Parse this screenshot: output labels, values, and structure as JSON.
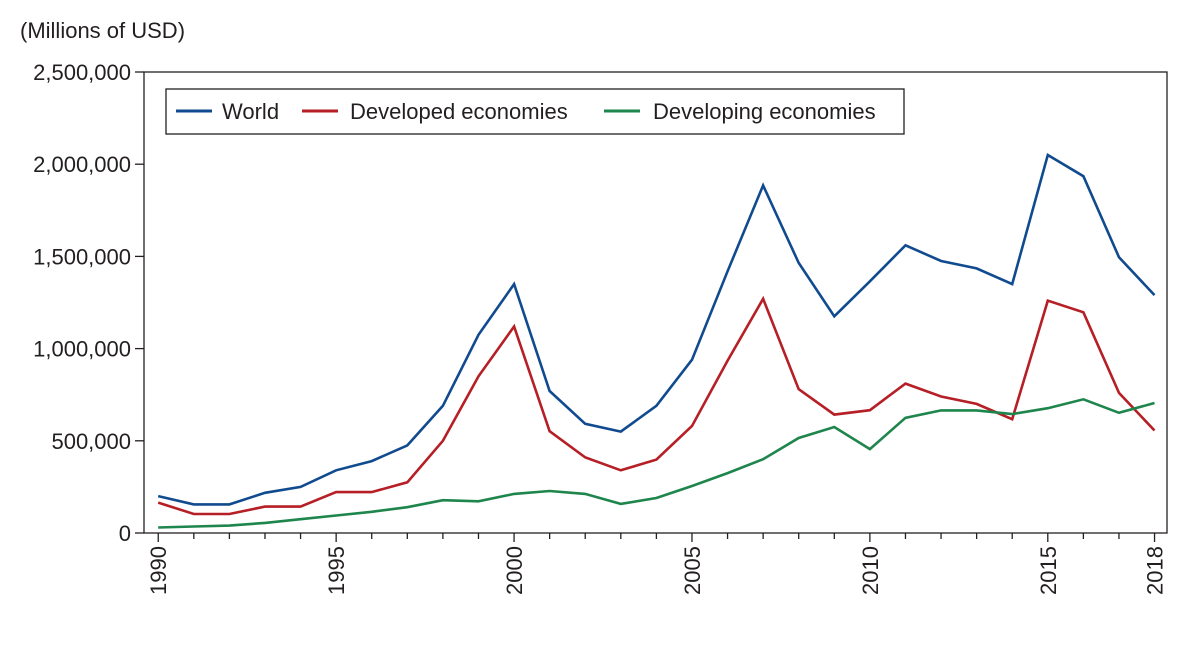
{
  "chart_data": {
    "type": "line",
    "title": "",
    "unit_label": "(Millions of USD)",
    "xlabel": "",
    "ylabel": "",
    "x": [
      1990,
      1991,
      1992,
      1993,
      1994,
      1995,
      1996,
      1997,
      1998,
      1999,
      2000,
      2001,
      2002,
      2003,
      2004,
      2005,
      2006,
      2007,
      2008,
      2009,
      2010,
      2011,
      2012,
      2013,
      2014,
      2015,
      2016,
      2017,
      2018
    ],
    "xlim": [
      1989.6,
      2018.35
    ],
    "ylim": [
      0,
      2500000
    ],
    "x_ticks": [
      1990,
      1995,
      2000,
      2005,
      2010,
      2015,
      2018
    ],
    "x_tick_labels": [
      "1990",
      "1995",
      "2000",
      "2005",
      "2010",
      "2015",
      "2018"
    ],
    "y_ticks": [
      0,
      500000,
      1000000,
      1500000,
      2000000,
      2500000
    ],
    "y_tick_labels": [
      "0",
      "500,000",
      "1,000,000",
      "1,500,000",
      "2,000,000",
      "2,500,000"
    ],
    "grid": false,
    "legend_position": "top-left",
    "series": [
      {
        "name": "World",
        "color": "#114b8f",
        "values": [
          200000,
          155000,
          155000,
          218000,
          250000,
          340000,
          390000,
          475000,
          690000,
          1075000,
          1350000,
          770000,
          592000,
          550000,
          690000,
          940000,
          1420000,
          1885000,
          1465000,
          1175000,
          1365000,
          1560000,
          1475000,
          1435000,
          1350000,
          2050000,
          1935000,
          1495000,
          1290000
        ]
      },
      {
        "name": "Developed economies",
        "color": "#b51f25",
        "values": [
          165000,
          103000,
          103000,
          143000,
          143000,
          222000,
          222000,
          275000,
          500000,
          850000,
          1120000,
          552000,
          410000,
          340000,
          398000,
          580000,
          935000,
          1270000,
          780000,
          642000,
          666000,
          810000,
          740000,
          700000,
          617000,
          1260000,
          1197000,
          760000,
          556000
        ]
      },
      {
        "name": "Developing economies",
        "color": "#1e854c",
        "values": [
          30000,
          35000,
          40000,
          55000,
          75000,
          95000,
          115000,
          140000,
          178000,
          172000,
          212000,
          228000,
          212000,
          158000,
          190000,
          255000,
          325000,
          400000,
          515000,
          575000,
          455000,
          625000,
          665000,
          665000,
          645000,
          677000,
          725000,
          652000,
          705000
        ]
      }
    ]
  }
}
